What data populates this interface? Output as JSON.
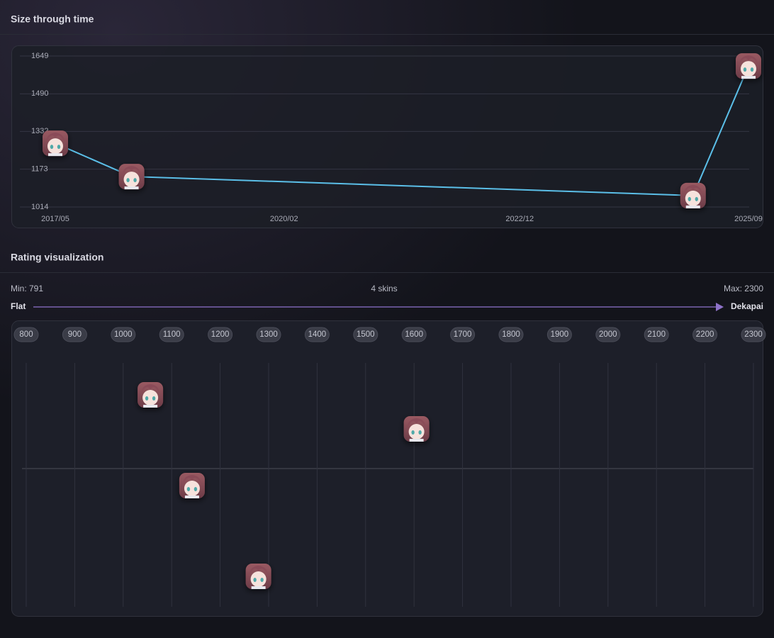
{
  "chart_data": [
    {
      "type": "line",
      "title": "Size through time",
      "x": [
        "2017/05",
        "2018/04",
        "2025/01",
        "2025/09"
      ],
      "series": [
        {
          "color": "#5bbfe8",
          "values": [
            1282,
            1142,
            1062,
            1607
          ]
        }
      ],
      "xlim": [
        "2017/05",
        "2025/09"
      ],
      "xticks": [
        "2017/05",
        "2020/02",
        "2022/12",
        "2025/09"
      ],
      "ylim": [
        1014,
        1649
      ],
      "yticks": [
        1014,
        1173,
        1332,
        1490,
        1649
      ],
      "grid": true
    },
    {
      "type": "strip",
      "title": "Rating visualization",
      "min_label": "Min: 791",
      "count_label": "4 skins",
      "max_label": "Max: 2300",
      "left_label": "Flat",
      "right_label": "Dekapai",
      "values": [
        1056,
        1605,
        1142,
        1279
      ],
      "xlim": [
        800,
        2300
      ],
      "xticks": [
        800,
        900,
        1000,
        1100,
        1200,
        1300,
        1400,
        1500,
        1600,
        1700,
        1800,
        1900,
        2000,
        2100,
        2200,
        2300
      ],
      "grid": true
    }
  ]
}
